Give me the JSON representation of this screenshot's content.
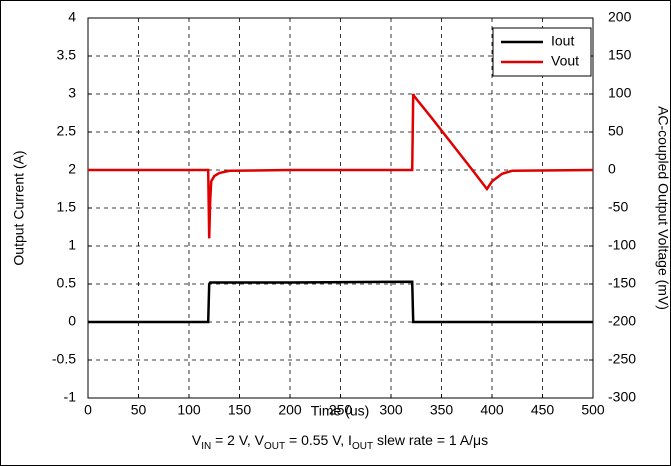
{
  "chart_data": {
    "type": "line",
    "x_label": "Time (us)",
    "y_label": "Output Current (A)",
    "y2_label": "AC-coupled Output Voltage (mV)",
    "caption": [
      "V",
      "IN",
      " = 2 V, V",
      "OUT",
      " = 0.55 V, I",
      "OUT",
      " slew rate = 1 A/μs"
    ],
    "x": [
      0,
      119,
      120,
      121,
      122,
      125,
      130,
      140,
      200,
      321,
      322,
      323,
      340,
      360,
      380,
      395,
      400,
      410,
      420,
      500
    ],
    "series": [
      {
        "name": "Iout",
        "color": "#000000",
        "axis": "y",
        "values": [
          0,
          0,
          0.5,
          0.52,
          0.52,
          0.52,
          0.52,
          0.52,
          0.52,
          0.53,
          0,
          0,
          0,
          0,
          0,
          0,
          0,
          0,
          0,
          0
        ]
      },
      {
        "name": "Vout",
        "color": "#e00000",
        "axis": "y2",
        "values": [
          0,
          0,
          -90,
          -40,
          -15,
          -8,
          -4,
          -1,
          0,
          0,
          100,
          97,
          69,
          35,
          1,
          -25,
          -15,
          -5,
          -1,
          0
        ]
      }
    ],
    "xlim": [
      0,
      500
    ],
    "xticks": [
      0,
      50,
      100,
      150,
      200,
      250,
      300,
      350,
      400,
      450,
      500
    ],
    "ylim": [
      -1,
      4
    ],
    "yticks": [
      -1,
      -0.5,
      0,
      0.5,
      1,
      1.5,
      2,
      2.5,
      3,
      3.5,
      4
    ],
    "y2lim": [
      -300,
      200
    ],
    "y2ticks": [
      -300,
      -250,
      -200,
      -150,
      -100,
      -50,
      0,
      50,
      100,
      150,
      200
    ],
    "grid": true,
    "legend": "top-right"
  }
}
